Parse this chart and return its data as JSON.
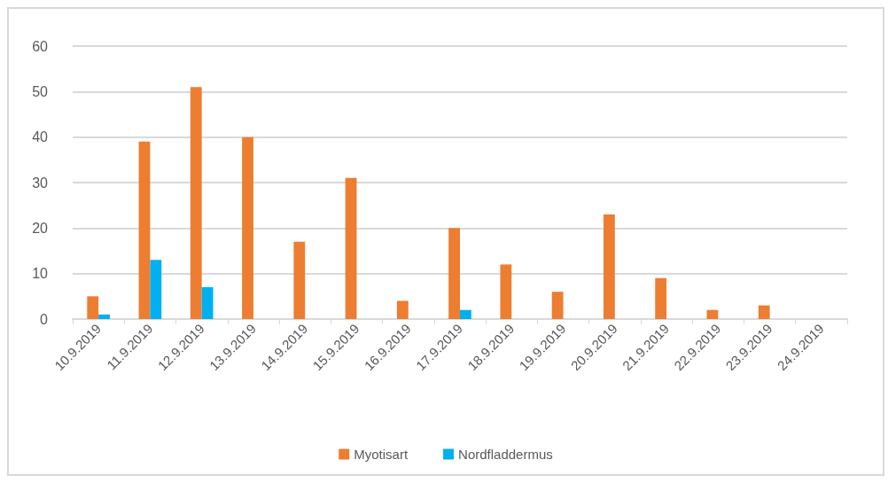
{
  "chart_data": {
    "type": "bar",
    "categories": [
      "10.9.2019",
      "11.9.2019",
      "12.9.2019",
      "13.9.2019",
      "14.9.2019",
      "15.9.2019",
      "16.9.2019",
      "17.9.2019",
      "18.9.2019",
      "19.9.2019",
      "20.9.2019",
      "21.9.2019",
      "22.9.2019",
      "23.9.2019",
      "24.9.2019"
    ],
    "series": [
      {
        "name": "Myotisart",
        "color": "#ed7d31",
        "values": [
          5,
          39,
          51,
          40,
          17,
          31,
          4,
          20,
          12,
          6,
          23,
          9,
          2,
          3,
          0
        ]
      },
      {
        "name": "Nordfladdermus",
        "color": "#00b0f0",
        "values": [
          1,
          13,
          7,
          0,
          0,
          0,
          0,
          2,
          0,
          0,
          0,
          0,
          0,
          0,
          0
        ]
      }
    ],
    "ylim": [
      0,
      60
    ],
    "yticks": [
      0,
      10,
      20,
      30,
      40,
      50,
      60
    ],
    "grid": "y",
    "legend": "bottom"
  }
}
